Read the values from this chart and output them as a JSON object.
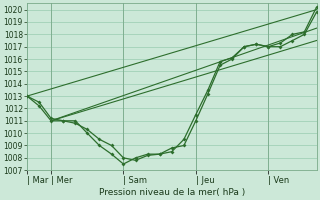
{
  "xlabel": "Pression niveau de la mer( hPa )",
  "ylim": [
    1007,
    1020.5
  ],
  "bg_color": "#cce8d8",
  "grid_color": "#99ccb0",
  "line_color": "#2d6e2d",
  "yticks": [
    1007,
    1008,
    1009,
    1010,
    1011,
    1012,
    1013,
    1014,
    1015,
    1016,
    1017,
    1018,
    1019,
    1020
  ],
  "day_labels": [
    "| Mar",
    "| Mer",
    "| Sam",
    "| Jeu",
    "| Ven"
  ],
  "day_positions": [
    0,
    0.083,
    0.333,
    0.583,
    0.833
  ],
  "xlim": [
    0,
    1.0
  ],
  "line1_x": [
    0.0,
    0.042,
    0.083,
    0.125,
    0.167,
    0.208,
    0.25,
    0.292,
    0.333,
    0.375,
    0.417,
    0.458,
    0.5,
    0.542,
    0.583,
    0.625,
    0.667,
    0.708,
    0.75,
    0.792,
    0.833,
    0.875,
    0.917,
    0.958,
    1.0
  ],
  "line1_y": [
    1013.0,
    1012.5,
    1011.2,
    1011.0,
    1010.8,
    1010.3,
    1009.5,
    1009.0,
    1008.0,
    1007.8,
    1008.2,
    1008.3,
    1008.5,
    1009.5,
    1011.5,
    1013.5,
    1015.8,
    1016.1,
    1017.0,
    1017.2,
    1017.0,
    1017.3,
    1018.0,
    1018.2,
    1020.2
  ],
  "line2_x": [
    0.0,
    0.042,
    0.083,
    0.125,
    0.167,
    0.208,
    0.25,
    0.292,
    0.333,
    0.375,
    0.417,
    0.458,
    0.5,
    0.542,
    0.583,
    0.625,
    0.667,
    0.708,
    0.75,
    0.792,
    0.833,
    0.875,
    0.917,
    0.958,
    1.0
  ],
  "line2_y": [
    1013.0,
    1012.2,
    1011.0,
    1011.0,
    1011.0,
    1010.0,
    1009.0,
    1008.3,
    1007.5,
    1008.0,
    1008.3,
    1008.3,
    1008.8,
    1009.0,
    1011.0,
    1013.2,
    1015.5,
    1016.0,
    1017.0,
    1017.2,
    1017.0,
    1017.0,
    1017.5,
    1018.0,
    1019.8
  ],
  "trend1_x": [
    0.0,
    1.0
  ],
  "trend1_y": [
    1013.0,
    1020.0
  ],
  "trend2_x": [
    0.083,
    1.0
  ],
  "trend2_y": [
    1011.0,
    1018.5
  ],
  "trend3_x": [
    0.083,
    1.0
  ],
  "trend3_y": [
    1011.0,
    1017.5
  ]
}
